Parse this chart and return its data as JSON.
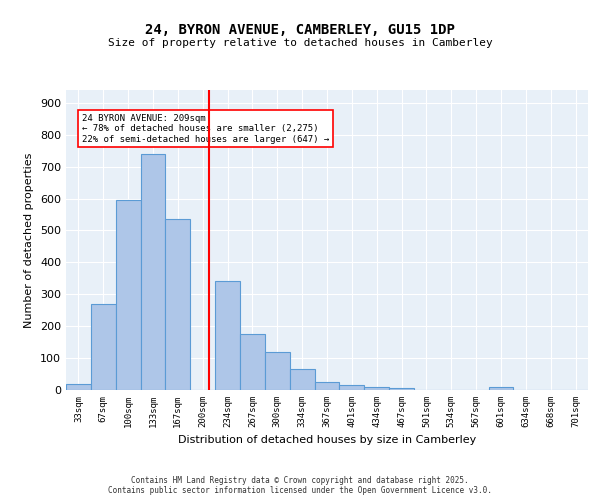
{
  "title1": "24, BYRON AVENUE, CAMBERLEY, GU15 1DP",
  "title2": "Size of property relative to detached houses in Camberley",
  "xlabel": "Distribution of detached houses by size in Camberley",
  "ylabel": "Number of detached properties",
  "categories": [
    "33sqm",
    "67sqm",
    "100sqm",
    "133sqm",
    "167sqm",
    "200sqm",
    "234sqm",
    "267sqm",
    "300sqm",
    "334sqm",
    "367sqm",
    "401sqm",
    "434sqm",
    "467sqm",
    "501sqm",
    "534sqm",
    "567sqm",
    "601sqm",
    "634sqm",
    "668sqm",
    "701sqm"
  ],
  "values": [
    20,
    270,
    595,
    740,
    535,
    0,
    340,
    175,
    120,
    65,
    25,
    15,
    10,
    5,
    0,
    0,
    0,
    10,
    0,
    0,
    0
  ],
  "bar_color": "#aec6e8",
  "bar_edge_color": "#5b9bd5",
  "vline_x": 5.0,
  "vline_color": "red",
  "annotation_text": "24 BYRON AVENUE: 209sqm\n← 78% of detached houses are smaller (2,275)\n22% of semi-detached houses are larger (647) →",
  "annotation_box_color": "white",
  "annotation_box_edge": "red",
  "bg_color": "#e8f0f8",
  "grid_color": "white",
  "footer1": "Contains HM Land Registry data © Crown copyright and database right 2025.",
  "footer2": "Contains public sector information licensed under the Open Government Licence v3.0.",
  "ylim": [
    0,
    940
  ],
  "yticks": [
    0,
    100,
    200,
    300,
    400,
    500,
    600,
    700,
    800,
    900
  ]
}
